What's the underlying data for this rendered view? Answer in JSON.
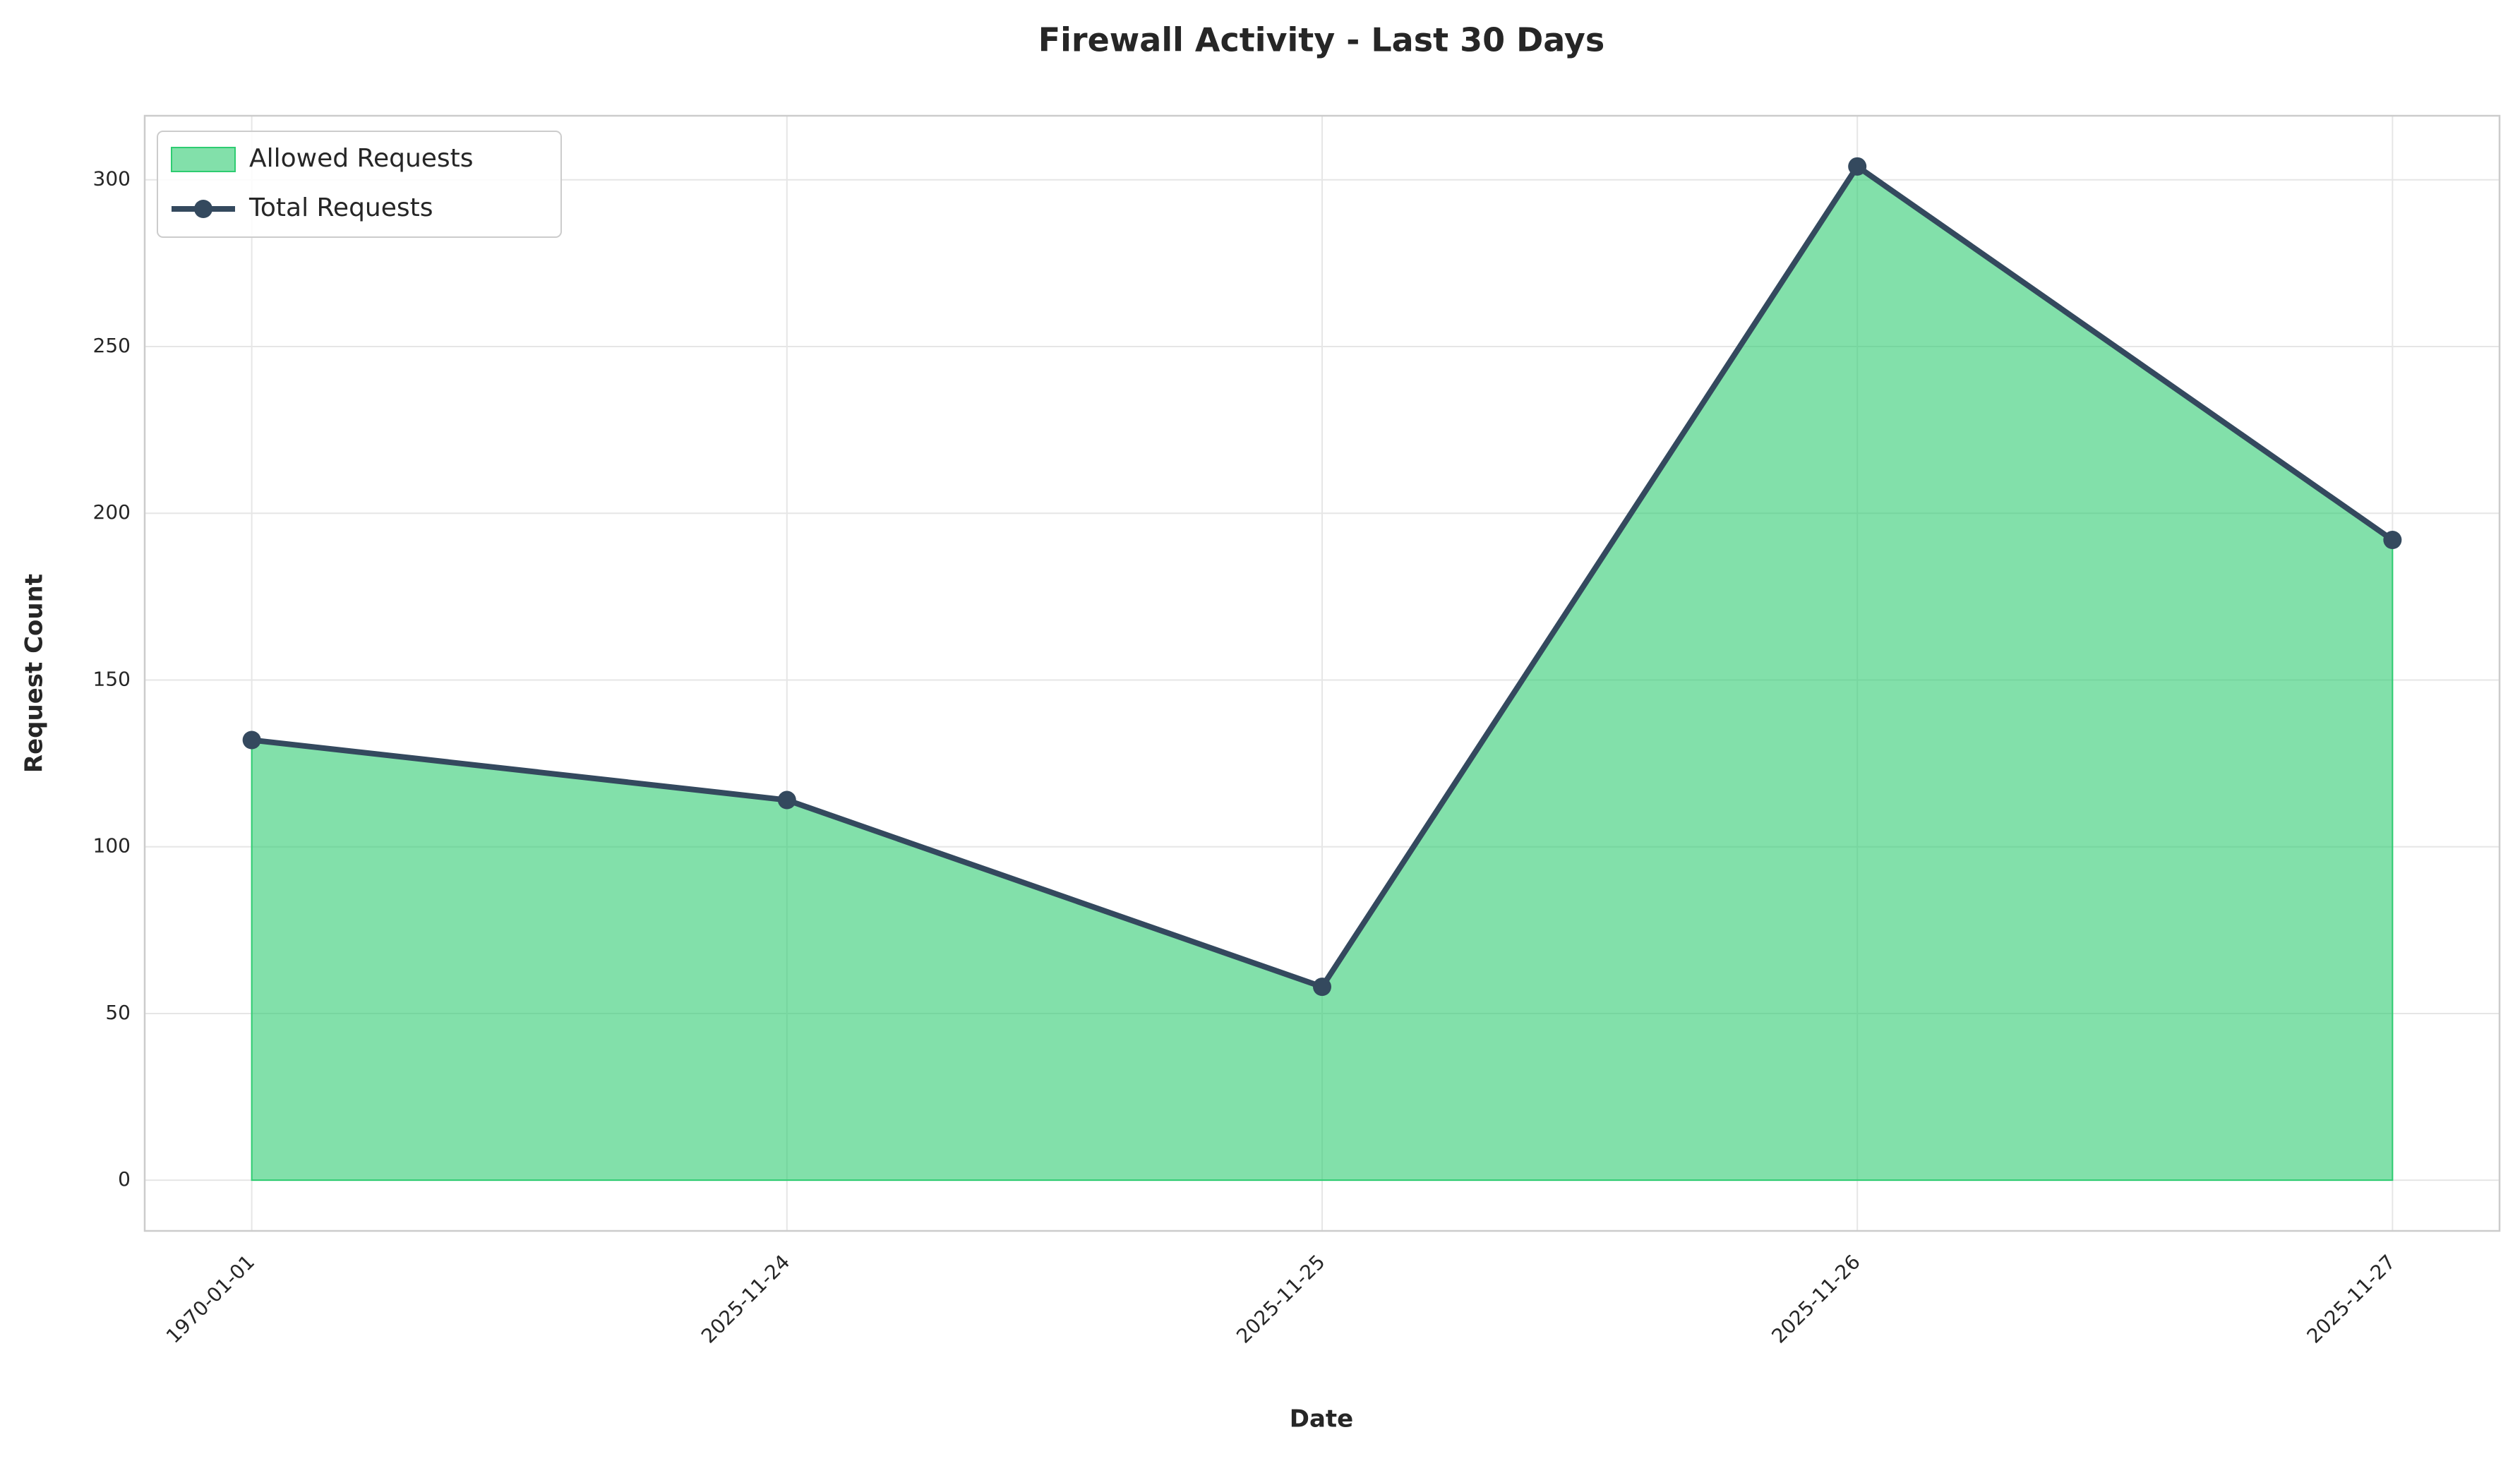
{
  "chart_data": {
    "type": "area-line",
    "title": "Firewall Activity - Last 30 Days",
    "x_label": "Date",
    "y_label": "Request Count",
    "categories": [
      "1970-01-01",
      "2025-11-24",
      "2025-11-25",
      "2025-11-26",
      "2025-11-27"
    ],
    "series": [
      {
        "name": "Allowed Requests",
        "kind": "area",
        "color": "#2ecc71",
        "values": [
          132,
          114,
          58,
          304,
          192
        ]
      },
      {
        "name": "Total Requests",
        "kind": "line",
        "color": "#34495e",
        "values": [
          132,
          114,
          58,
          304,
          192
        ]
      }
    ],
    "ylim": [
      -15.2,
      319.2
    ],
    "yticks": [
      0,
      50,
      100,
      150,
      200,
      250,
      300
    ],
    "grid": true,
    "legend": "upper-left"
  }
}
